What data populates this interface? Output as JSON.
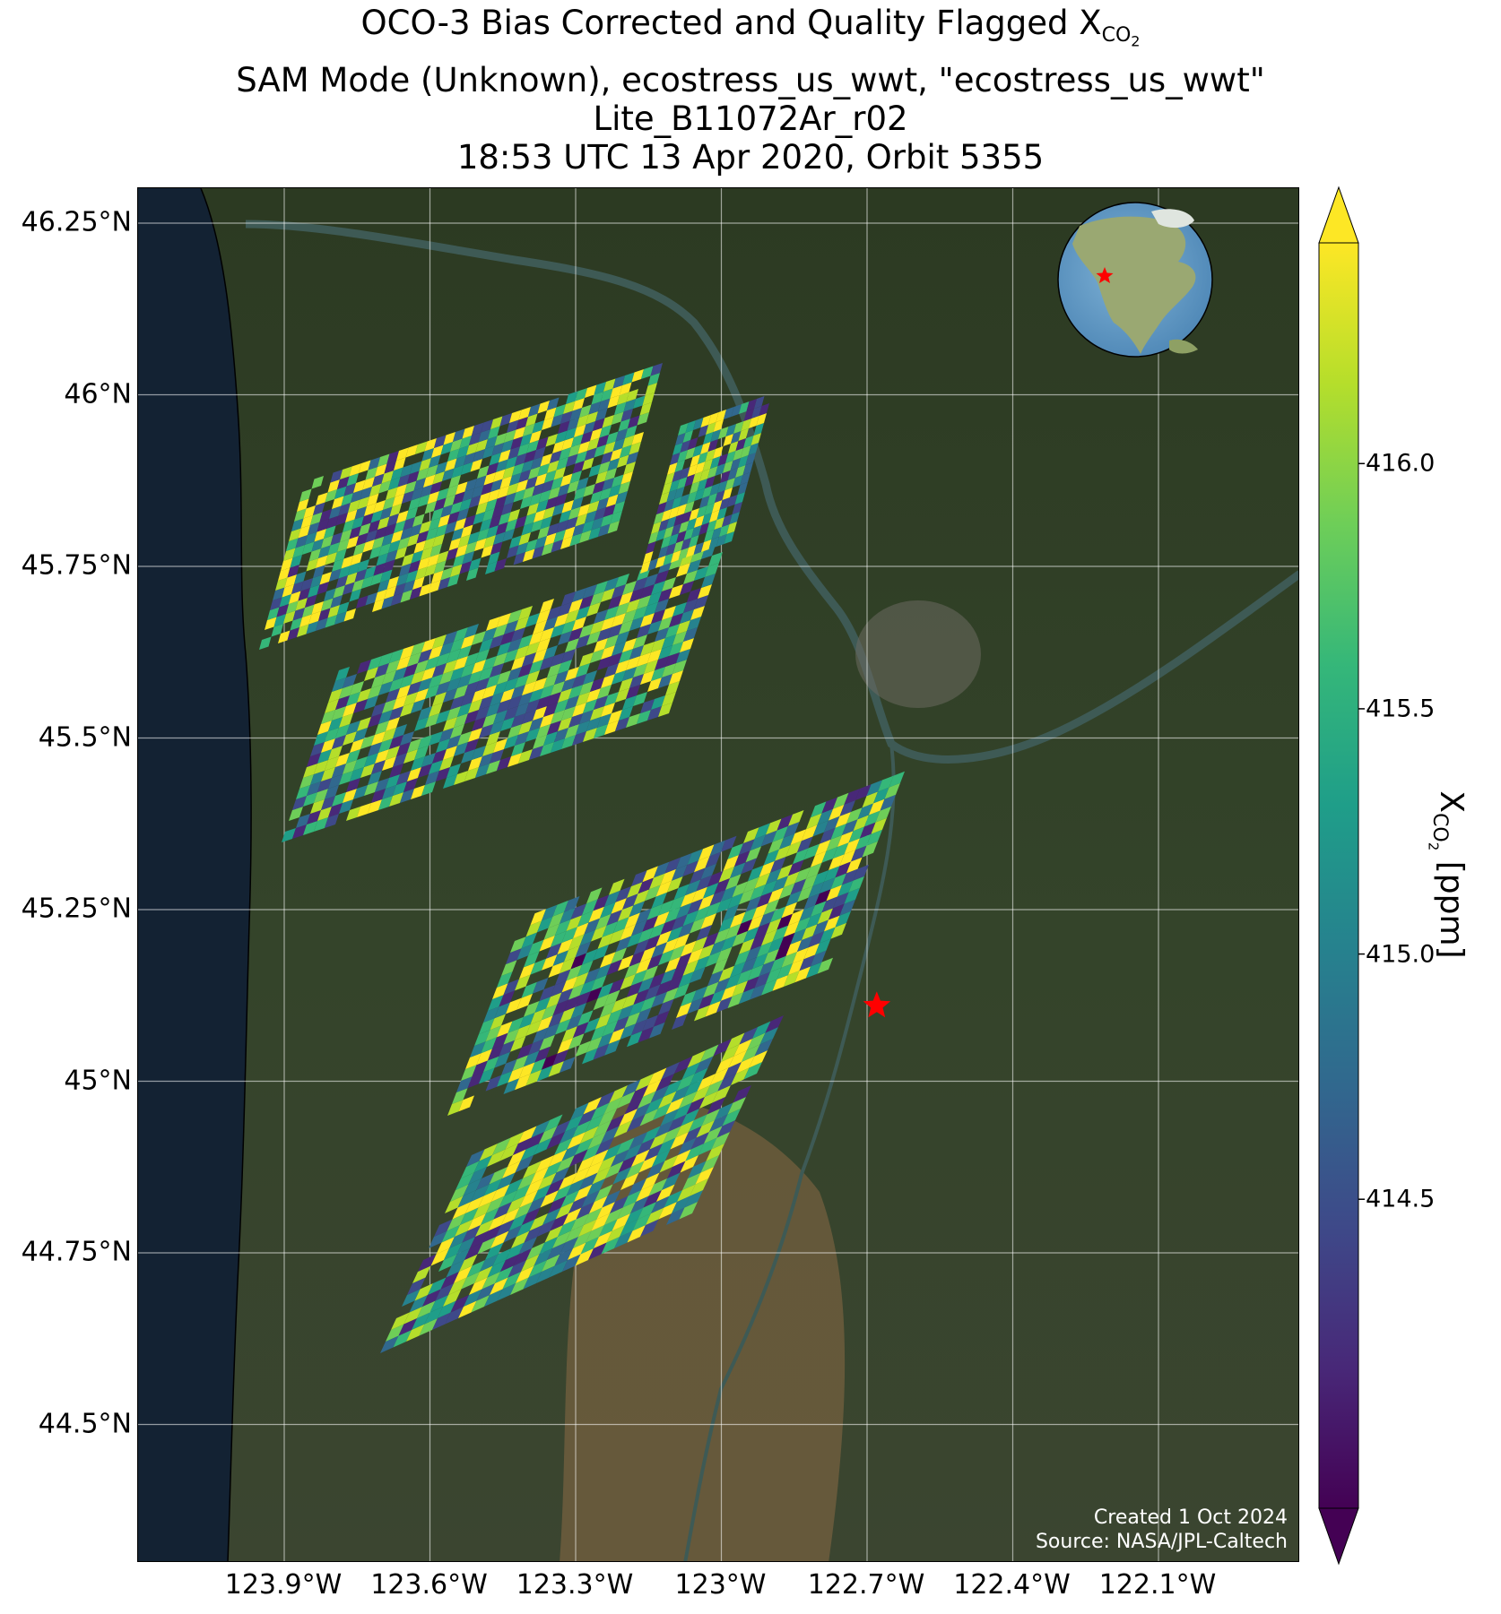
{
  "title": {
    "line1_prefix": "OCO-3 Bias Corrected and Quality Flagged X",
    "line1_sub": "CO",
    "line1_subsub": "2",
    "line2": "SAM Mode (Unknown), ecostress_us_wwt, \"ecostress_us_wwt\"",
    "line3": "Lite_B11072Ar_r02",
    "line4": "18:53 UTC 13 Apr 2020, Orbit 5355"
  },
  "map": {
    "lat_labels": [
      "46.25°N",
      "46°N",
      "45.75°N",
      "45.5°N",
      "45.25°N",
      "45°N",
      "44.75°N",
      "44.5°N"
    ],
    "lon_labels": [
      "123.9°W",
      "123.6°W",
      "123.3°W",
      "123°W",
      "122.7°W",
      "122.4°W",
      "122.1°W"
    ],
    "lat_values": [
      46.25,
      46.0,
      45.75,
      45.5,
      45.25,
      45.0,
      44.75,
      44.5
    ],
    "lon_values": [
      -123.9,
      -123.6,
      -123.3,
      -123.0,
      -122.7,
      -122.4,
      -122.1
    ],
    "target_marker": {
      "name": "ecostress_us_wwt",
      "lat": 45.11,
      "lon": -122.68,
      "color": "#ff0000"
    },
    "inset_globe_marker": "star",
    "credit_line1": "Created 1 Oct 2024",
    "credit_line2": "Source: NASA/JPL-Caltech"
  },
  "colorbar": {
    "colormap": "viridis",
    "extend": "both",
    "ticks": [
      "414.5",
      "415.0",
      "415.5",
      "416.0"
    ],
    "tick_values": [
      414.5,
      415.0,
      415.5,
      416.0
    ],
    "label_prefix": "X",
    "label_sub": "CO",
    "label_subsub": "2",
    "label_suffix": " [ppm]",
    "colors": [
      "#440154",
      "#482878",
      "#3e4989",
      "#31688e",
      "#26828e",
      "#1f9e89",
      "#35b779",
      "#6ece58",
      "#b5de2b",
      "#fde725"
    ]
  }
}
